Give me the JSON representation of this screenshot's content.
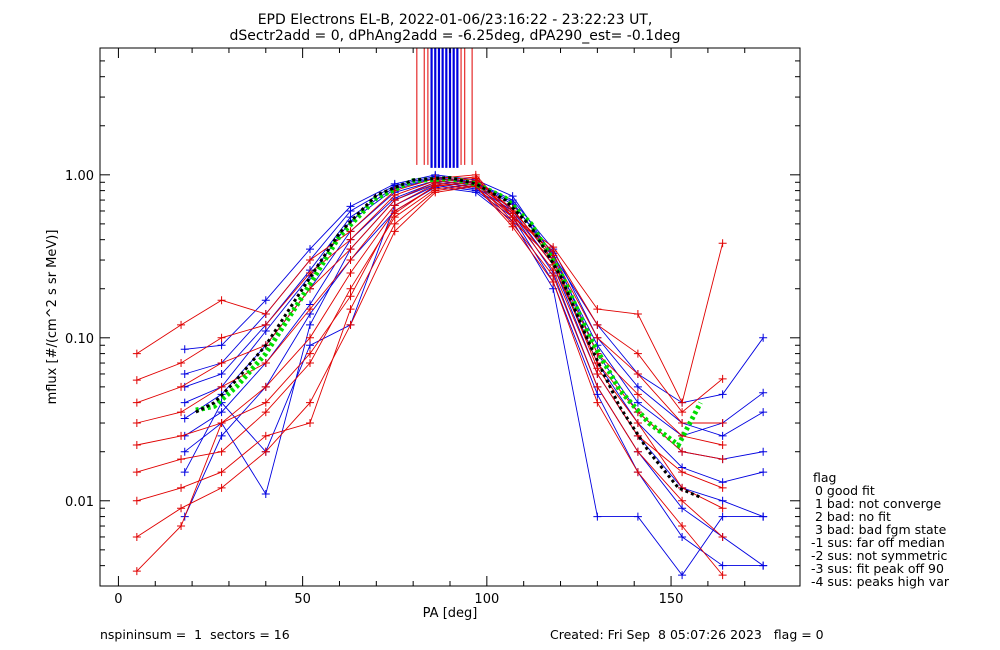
{
  "chart_data": {
    "type": "line",
    "title": "EPD Electrons EL-B, 2022-01-06/23:16:22 - 23:22:23 UT,",
    "subtitle": "dSectr2add = 0, dPhAng2add = -6.25deg, dPA290_est=  -0.1deg",
    "xlabel": "PA [deg]",
    "ylabel": "mflux [#/(cm^2 s sr MeV)]",
    "xlim": [
      -5,
      185
    ],
    "ylim": [
      0.003,
      6
    ],
    "y_scale": "log",
    "x_ticks": [
      0,
      50,
      100,
      150
    ],
    "y_ticks": [
      {
        "value": 0.01,
        "label": "0.01"
      },
      {
        "value": 0.1,
        "label": "0.10"
      },
      {
        "value": 1.0,
        "label": "1.00"
      }
    ],
    "grid": false,
    "colors": {
      "red": "#e00000",
      "blue": "#0000e0",
      "green": "#00dd00",
      "black": "#000000"
    },
    "series": [
      {
        "color": "#0000e0",
        "x": [
          18,
          28,
          40,
          52,
          63,
          75,
          86,
          97,
          107,
          118,
          130,
          141,
          153,
          164,
          175
        ],
        "y": [
          0.032,
          0.045,
          0.09,
          0.2,
          0.45,
          0.78,
          0.92,
          0.86,
          0.62,
          0.3,
          0.07,
          0.03,
          0.016,
          0.013,
          0.015
        ]
      },
      {
        "color": "#0000e0",
        "x": [
          18,
          28,
          40,
          52,
          63,
          75,
          86,
          97,
          107,
          118,
          130,
          141,
          153,
          164,
          175
        ],
        "y": [
          0.04,
          0.05,
          0.11,
          0.24,
          0.52,
          0.82,
          0.95,
          0.88,
          0.66,
          0.33,
          0.08,
          0.035,
          0.02,
          0.018,
          0.02
        ]
      },
      {
        "color": "#0000e0",
        "x": [
          18,
          28,
          40,
          52,
          63,
          75,
          86,
          97,
          107,
          118,
          130,
          141,
          153,
          164,
          175
        ],
        "y": [
          0.06,
          0.07,
          0.14,
          0.3,
          0.6,
          0.86,
          0.98,
          0.9,
          0.7,
          0.35,
          0.1,
          0.05,
          0.03,
          0.025,
          0.035
        ]
      },
      {
        "color": "#0000e0",
        "x": [
          18,
          28,
          40,
          52,
          63,
          75,
          86,
          97,
          107,
          118,
          130,
          141,
          153,
          164,
          175
        ],
        "y": [
          0.085,
          0.09,
          0.17,
          0.35,
          0.64,
          0.88,
          1.0,
          0.93,
          0.74,
          0.32,
          0.12,
          0.06,
          0.04,
          0.045,
          0.1
        ]
      },
      {
        "color": "#0000e0",
        "x": [
          18,
          28,
          40,
          52,
          63,
          75,
          86,
          97,
          107,
          118,
          130,
          141,
          153,
          164,
          175
        ],
        "y": [
          0.025,
          0.035,
          0.07,
          0.16,
          0.4,
          0.72,
          0.9,
          0.84,
          0.6,
          0.28,
          0.06,
          0.025,
          0.012,
          0.01,
          0.008
        ]
      },
      {
        "color": "#0000e0",
        "x": [
          18,
          28,
          40,
          52,
          63,
          75,
          86,
          97,
          107,
          118,
          130,
          141,
          153,
          164,
          175
        ],
        "y": [
          0.02,
          0.03,
          0.011,
          0.12,
          0.35,
          0.7,
          0.88,
          0.82,
          0.58,
          0.25,
          0.05,
          0.02,
          0.009,
          0.006,
          0.004
        ]
      },
      {
        "color": "#0000e0",
        "x": [
          18,
          28,
          40,
          52,
          63,
          75,
          86,
          97,
          107,
          118,
          130,
          141,
          153,
          164,
          175
        ],
        "y": [
          0.015,
          0.04,
          0.02,
          0.09,
          0.12,
          0.65,
          0.86,
          0.8,
          0.55,
          0.22,
          0.045,
          0.015,
          0.006,
          0.004,
          0.004
        ]
      },
      {
        "color": "#0000e0",
        "x": [
          18,
          28,
          40,
          52,
          63,
          75,
          86,
          97,
          107,
          118,
          130,
          141,
          153,
          164,
          175
        ],
        "y": [
          0.008,
          0.025,
          0.05,
          0.14,
          0.3,
          0.6,
          0.84,
          0.78,
          0.52,
          0.2,
          0.008,
          0.008,
          0.0035,
          0.008,
          0.008
        ]
      },
      {
        "color": "#0000e0",
        "x": [
          18,
          28,
          40,
          52,
          63,
          75,
          86,
          97,
          107,
          118,
          130,
          141,
          153,
          164,
          175
        ],
        "y": [
          0.05,
          0.06,
          0.12,
          0.26,
          0.55,
          0.84,
          0.96,
          0.89,
          0.68,
          0.31,
          0.09,
          0.04,
          0.025,
          0.03,
          0.046
        ]
      },
      {
        "color": "#e00000",
        "x": [
          5,
          17,
          28,
          40,
          52,
          63,
          75,
          86,
          97,
          107,
          118,
          130,
          141,
          153,
          164
        ],
        "y": [
          0.08,
          0.12,
          0.17,
          0.14,
          0.3,
          0.45,
          0.8,
          0.95,
          1.0,
          0.55,
          0.36,
          0.15,
          0.14,
          0.04,
          0.38
        ]
      },
      {
        "color": "#e00000",
        "x": [
          5,
          17,
          28,
          40,
          52,
          63,
          75,
          86,
          97,
          107,
          118,
          130,
          141,
          153,
          164
        ],
        "y": [
          0.055,
          0.07,
          0.1,
          0.12,
          0.25,
          0.4,
          0.75,
          0.92,
          0.97,
          0.55,
          0.34,
          0.12,
          0.08,
          0.035,
          0.056
        ]
      },
      {
        "color": "#e00000",
        "x": [
          5,
          17,
          28,
          40,
          52,
          63,
          75,
          86,
          97,
          107,
          118,
          130,
          141,
          153,
          164
        ],
        "y": [
          0.04,
          0.05,
          0.07,
          0.09,
          0.2,
          0.35,
          0.7,
          0.9,
          0.95,
          0.6,
          0.32,
          0.1,
          0.06,
          0.03,
          0.03
        ]
      },
      {
        "color": "#e00000",
        "x": [
          5,
          17,
          28,
          40,
          52,
          63,
          75,
          86,
          97,
          107,
          118,
          130,
          141,
          153,
          164
        ],
        "y": [
          0.03,
          0.035,
          0.05,
          0.07,
          0.15,
          0.3,
          0.65,
          0.88,
          0.92,
          0.62,
          0.3,
          0.08,
          0.045,
          0.025,
          0.022
        ]
      },
      {
        "color": "#e00000",
        "x": [
          5,
          17,
          28,
          40,
          52,
          63,
          75,
          86,
          97,
          107,
          118,
          130,
          141,
          153,
          164
        ],
        "y": [
          0.022,
          0.025,
          0.03,
          0.05,
          0.1,
          0.25,
          0.6,
          0.85,
          0.9,
          0.58,
          0.28,
          0.07,
          0.035,
          0.02,
          0.018
        ]
      },
      {
        "color": "#e00000",
        "x": [
          5,
          17,
          28,
          40,
          52,
          63,
          75,
          86,
          97,
          107,
          118,
          130,
          141,
          153,
          164
        ],
        "y": [
          0.015,
          0.018,
          0.02,
          0.035,
          0.07,
          0.2,
          0.55,
          0.82,
          0.88,
          0.55,
          0.26,
          0.06,
          0.025,
          0.015,
          0.012
        ]
      },
      {
        "color": "#e00000",
        "x": [
          5,
          17,
          28,
          40,
          52,
          63,
          75,
          86,
          97,
          107,
          118,
          130,
          141,
          153,
          164
        ],
        "y": [
          0.01,
          0.012,
          0.015,
          0.025,
          0.03,
          0.15,
          0.5,
          0.8,
          0.86,
          0.5,
          0.24,
          0.05,
          0.02,
          0.01,
          0.006
        ]
      },
      {
        "color": "#e00000",
        "x": [
          5,
          17,
          28,
          40,
          52,
          63,
          75,
          86,
          97,
          107,
          118,
          130,
          141,
          153,
          164
        ],
        "y": [
          0.006,
          0.009,
          0.012,
          0.02,
          0.04,
          0.12,
          0.45,
          0.78,
          0.85,
          0.48,
          0.22,
          0.04,
          0.015,
          0.007,
          0.0035
        ]
      },
      {
        "color": "#e00000",
        "x": [
          5,
          17,
          28,
          40,
          52,
          63,
          75,
          86,
          97,
          107,
          118,
          130,
          141,
          153,
          164
        ],
        "y": [
          0.0037,
          0.007,
          0.03,
          0.04,
          0.08,
          0.18,
          0.58,
          0.86,
          0.9,
          0.52,
          0.3,
          0.065,
          0.03,
          0.012,
          0.009
        ]
      },
      {
        "color": "#00dd00",
        "dotted": true,
        "x": [
          21,
          26,
          32,
          40,
          50,
          60,
          70,
          80,
          90,
          97,
          105,
          112,
          120,
          128,
          136,
          144,
          152,
          158
        ],
        "y": [
          0.036,
          0.038,
          0.05,
          0.08,
          0.18,
          0.42,
          0.72,
          0.92,
          0.95,
          0.88,
          0.72,
          0.5,
          0.25,
          0.1,
          0.048,
          0.03,
          0.022,
          0.04
        ]
      },
      {
        "color": "#000000",
        "dotted": true,
        "x": [
          21,
          26,
          32,
          40,
          50,
          60,
          70,
          80,
          90,
          97,
          105,
          112,
          120,
          128,
          136,
          144,
          152,
          158
        ],
        "y": [
          0.035,
          0.04,
          0.055,
          0.09,
          0.2,
          0.44,
          0.75,
          0.93,
          0.96,
          0.88,
          0.7,
          0.48,
          0.24,
          0.09,
          0.038,
          0.02,
          0.012,
          0.0105
        ]
      }
    ],
    "peak_spikes": {
      "red_x": [
        81,
        83,
        84,
        86,
        88,
        91,
        93,
        94,
        96
      ],
      "blue_x": [
        85,
        86,
        87,
        88,
        89,
        90,
        91,
        92
      ],
      "y_bottom": 1.15
    },
    "legend": {
      "placement": "right-bottom",
      "title": "flag",
      "entries": [
        " 0 good fit",
        " 1 bad: not converge",
        " 2 bad: no fit",
        " 3 bad: bad fgm state",
        "-1 sus: far off median",
        "-2 sus: not symmetric",
        "-3 sus: fit peak off 90",
        "-4 sus: peaks high var"
      ]
    },
    "footer": {
      "left": "nspininsum =  1  sectors = 16",
      "right": "Created: Fri Sep  8 05:07:26 2023   flag = 0"
    }
  }
}
